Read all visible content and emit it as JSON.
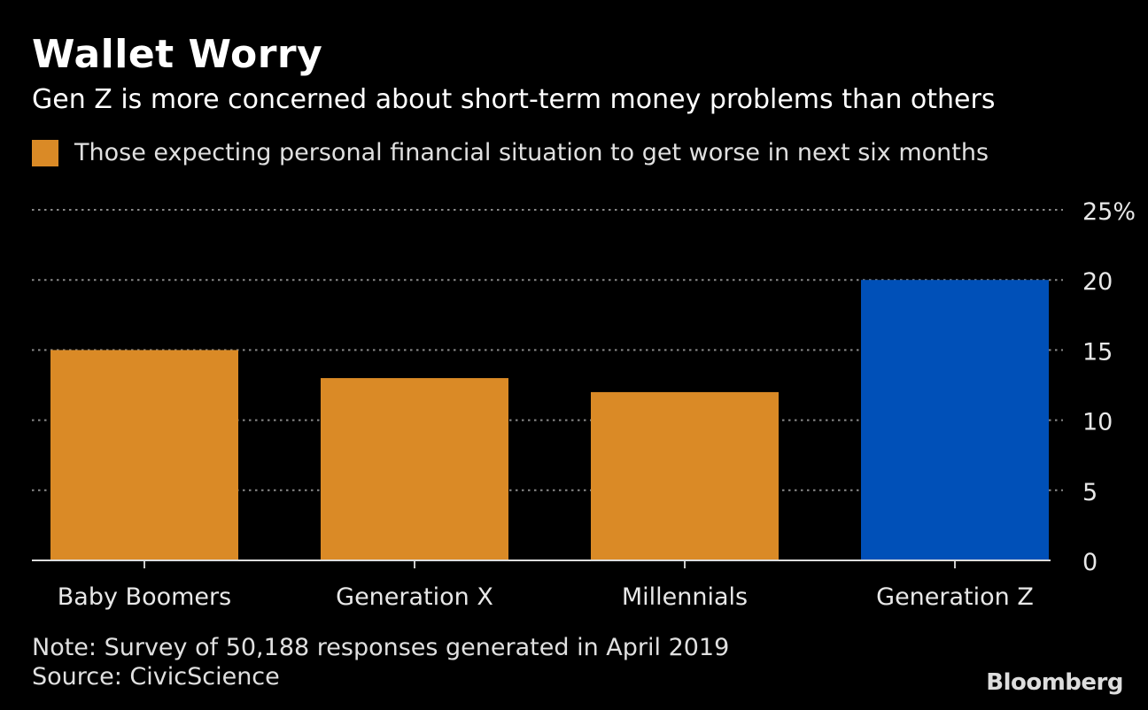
{
  "chart_data": {
    "type": "bar",
    "title": "Wallet Worry",
    "subtitle": "Gen Z is more concerned about short-term money problems than others",
    "legend": [
      {
        "label": "Those expecting personal financial situation to get worse in next six months",
        "color": "#DA8A26"
      }
    ],
    "categories": [
      "Baby Boomers",
      "Generation X",
      "Millennials",
      "Generation Z"
    ],
    "values": [
      15,
      13,
      12,
      20
    ],
    "bar_colors": [
      "#DA8A26",
      "#DA8A26",
      "#DA8A26",
      "#0050B8"
    ],
    "ylim": [
      0,
      25
    ],
    "yticks": [
      0,
      5,
      10,
      15,
      20,
      25
    ],
    "ytick_labels": [
      "0",
      "5",
      "10",
      "15",
      "20",
      "25%"
    ],
    "yaxis_position": "right",
    "grid": true,
    "legend_position": "top-left",
    "xlabel": "",
    "ylabel": ""
  },
  "footer": {
    "note": "Note: Survey of 50,188 responses generated in April 2019",
    "source": "Source: CivicScience",
    "logo": "Bloomberg"
  }
}
